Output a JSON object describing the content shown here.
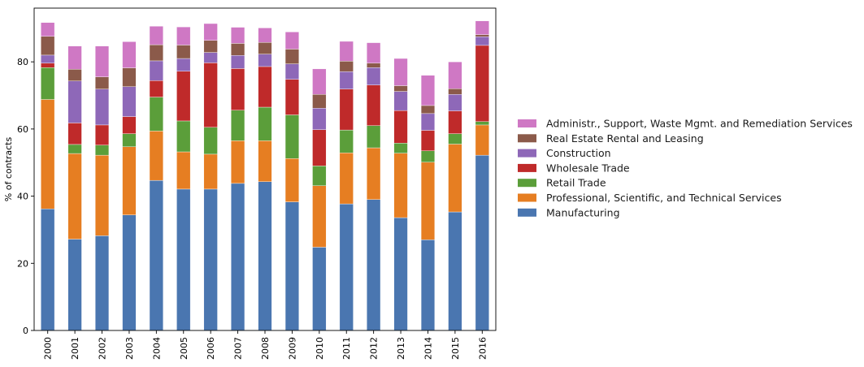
{
  "chart_data": {
    "type": "bar",
    "stacked": true,
    "categories": [
      "2000",
      "2001",
      "2002",
      "2003",
      "2004",
      "2005",
      "2006",
      "2007",
      "2008",
      "2009",
      "2010",
      "2011",
      "2012",
      "2013",
      "2014",
      "2015",
      "2016"
    ],
    "ylabel": "% of contracts",
    "xlabel": "",
    "ylim": [
      0,
      96
    ],
    "yticks": [
      0,
      20,
      40,
      60,
      80
    ],
    "legend_position": "right",
    "series": [
      {
        "name": "Manufacturing",
        "color": "#4a76b0",
        "values": [
          36.2,
          27.2,
          28.2,
          34.4,
          44.7,
          42.1,
          42.1,
          43.8,
          44.3,
          38.3,
          24.8,
          37.7,
          39.0,
          33.6,
          27.0,
          35.3,
          52.2
        ]
      },
      {
        "name": "Professional, Scientific, and Technical Services",
        "color": "#e67e22",
        "values": [
          32.6,
          25.5,
          24.0,
          20.3,
          14.7,
          11.1,
          10.4,
          12.7,
          12.2,
          12.9,
          18.3,
          15.2,
          15.4,
          19.2,
          23.1,
          20.2,
          9.0
        ]
      },
      {
        "name": "Retail Trade",
        "color": "#5b9e3a",
        "values": [
          9.5,
          2.7,
          3.0,
          3.9,
          10.1,
          9.2,
          8.0,
          9.1,
          10.0,
          13.0,
          5.9,
          6.8,
          6.6,
          3.0,
          3.4,
          3.1,
          1.0
        ]
      },
      {
        "name": "Wholesale Trade",
        "color": "#bf2a2a",
        "values": [
          1.3,
          6.4,
          6.0,
          5.1,
          4.9,
          14.8,
          19.2,
          12.4,
          12.1,
          10.6,
          10.8,
          12.2,
          12.1,
          9.7,
          6.1,
          6.8,
          22.7
        ]
      },
      {
        "name": "Construction",
        "color": "#8e68b8",
        "values": [
          2.4,
          12.5,
          10.7,
          8.9,
          5.9,
          3.8,
          3.1,
          3.9,
          3.7,
          4.6,
          6.4,
          5.2,
          5.2,
          5.7,
          5.0,
          4.9,
          2.6
        ]
      },
      {
        "name": "Real Estate Rental and Leasing",
        "color": "#8b5a4a",
        "values": [
          5.6,
          3.5,
          3.6,
          5.6,
          4.8,
          4.0,
          3.6,
          3.6,
          3.5,
          4.4,
          4.1,
          3.1,
          1.3,
          1.7,
          2.4,
          1.7,
          0.6
        ]
      },
      {
        "name": "Administr., Support, Waste Mgmt. and Remediation Services",
        "color": "#cf78c4",
        "values": [
          4.1,
          6.9,
          9.2,
          7.8,
          5.5,
          5.4,
          5.0,
          4.8,
          4.3,
          5.1,
          7.6,
          5.9,
          6.1,
          8.1,
          9.0,
          8.0,
          4.1
        ]
      }
    ],
    "legend_order": [
      6,
      5,
      4,
      3,
      2,
      1,
      0
    ]
  }
}
